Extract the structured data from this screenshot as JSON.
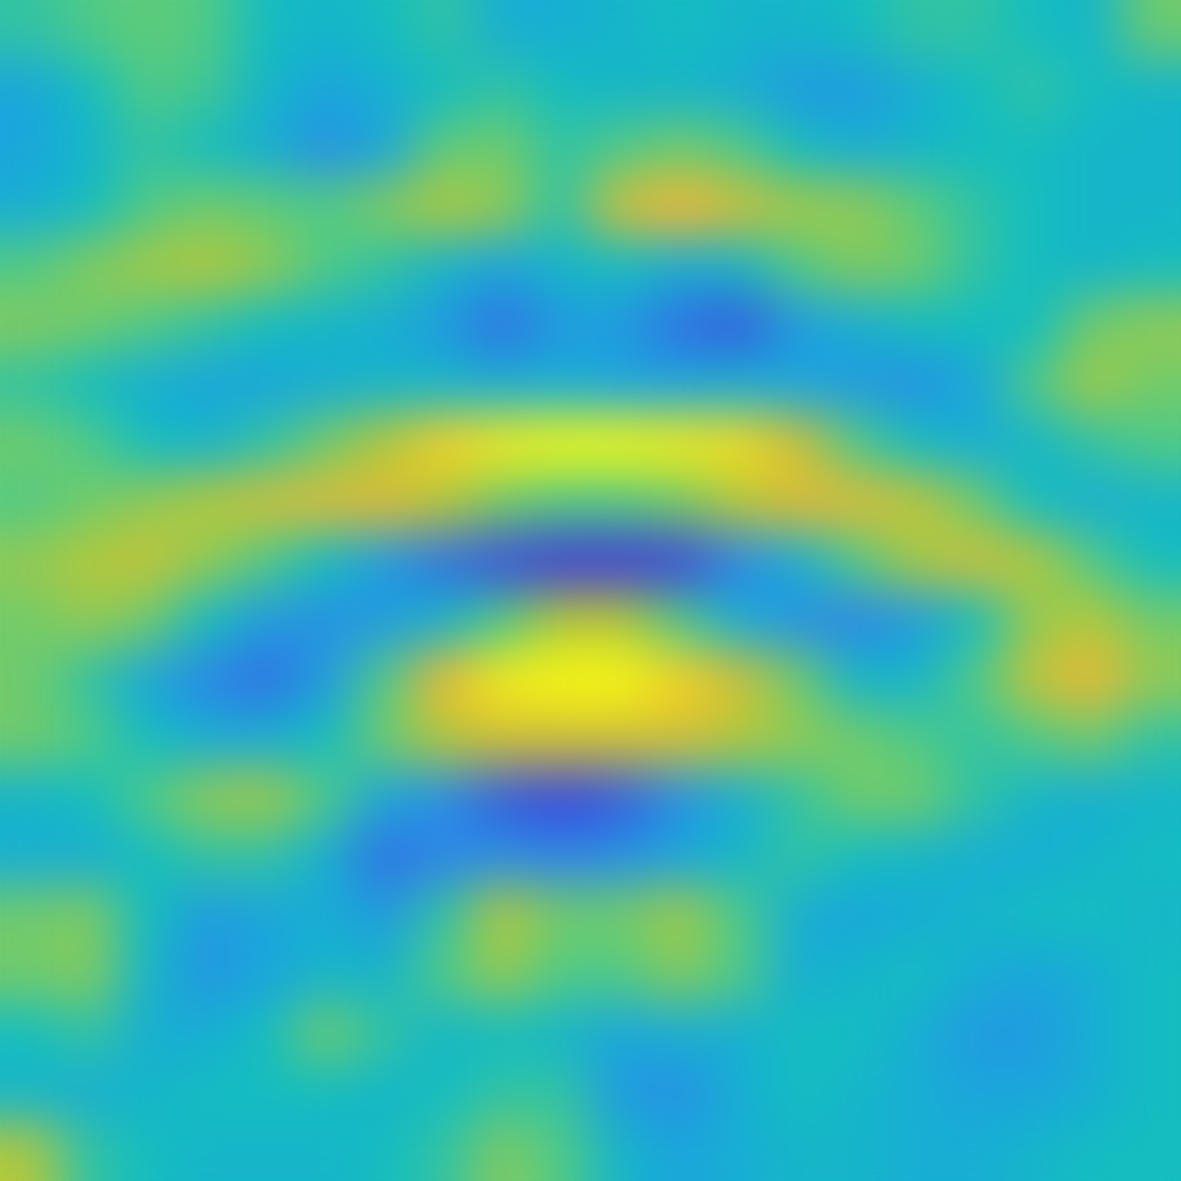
{
  "chart_data": {
    "type": "heatmap",
    "color": "parula",
    "tick_labels": false,
    "clim": [
      -1,
      1
    ],
    "cells": [
      [
        0.1,
        0.2,
        0.25,
        0.2,
        0,
        -0.1,
        0,
        0.1,
        -0.2,
        -0.2,
        -0.1,
        0,
        -0.1,
        -0.1,
        0,
        0.1,
        0.1,
        0,
        -0.1,
        0.3
      ],
      [
        -0.3,
        0,
        0.2,
        0.15,
        -0.1,
        -0.3,
        -0.2,
        0,
        0.1,
        0,
        -0.1,
        -0.1,
        -0.2,
        -0.4,
        -0.4,
        -0.2,
        0,
        0.1,
        0,
        -0.1
      ],
      [
        -0.3,
        -0.1,
        0.1,
        0,
        -0.2,
        -0.5,
        -0.3,
        0.25,
        0.3,
        0.1,
        0.2,
        0.3,
        0.2,
        0,
        -0.2,
        -0.1,
        0,
        0,
        -0.1,
        -0.1
      ],
      [
        -0.2,
        0,
        0.2,
        0.3,
        0.25,
        0.2,
        0.35,
        0.5,
        0.4,
        0.1,
        0.6,
        0.75,
        0.6,
        0.45,
        0.4,
        0.25,
        0.1,
        0,
        -0.1,
        -0.1
      ],
      [
        0.2,
        0.35,
        0.45,
        0.5,
        0.4,
        0.2,
        0.1,
        -0.1,
        -0.3,
        -0.1,
        0,
        -0.2,
        -0.1,
        0.2,
        0.35,
        0.3,
        0.1,
        0,
        -0.1,
        0
      ],
      [
        0.35,
        0.3,
        0.2,
        0.1,
        0,
        -0.1,
        -0.2,
        -0.4,
        -0.7,
        -0.4,
        -0.4,
        -0.7,
        -0.8,
        -0.4,
        -0.2,
        0,
        0,
        0,
        0.3,
        0.4
      ],
      [
        0.1,
        0,
        -0.2,
        -0.3,
        -0.3,
        -0.2,
        -0.1,
        -0.1,
        -0.2,
        -0.2,
        -0.3,
        -0.3,
        -0.2,
        -0.3,
        -0.4,
        -0.5,
        -0.3,
        0.2,
        0.45,
        0.3
      ],
      [
        0.3,
        0.2,
        0,
        -0.1,
        0.1,
        0.3,
        0.5,
        0.85,
        0.95,
        1.0,
        1.0,
        0.95,
        0.9,
        0.6,
        0.2,
        0,
        -0.2,
        -0.1,
        0.1,
        0.2
      ],
      [
        0.2,
        0.3,
        0.4,
        0.5,
        0.6,
        0.65,
        0.65,
        0.5,
        0.3,
        0.2,
        0.2,
        0.3,
        0.5,
        0.65,
        0.65,
        0.55,
        0.3,
        0,
        -0.2,
        -0.1
      ],
      [
        0.4,
        0.5,
        0.55,
        0.4,
        0.2,
        0,
        -0.4,
        -0.7,
        -0.85,
        -0.95,
        -0.95,
        -0.9,
        -0.6,
        -0.2,
        0.2,
        0.45,
        0.6,
        0.5,
        0.2,
        0
      ],
      [
        0.3,
        0.4,
        0.3,
        0,
        -0.4,
        -0.5,
        -0.4,
        -0.1,
        0.2,
        0.5,
        0.5,
        0.2,
        -0.2,
        -0.5,
        -0.6,
        -0.4,
        0,
        0.4,
        0.5,
        0.3
      ],
      [
        0.3,
        0.1,
        -0.3,
        -0.6,
        -0.7,
        -0.4,
        0.2,
        0.7,
        0.95,
        1.0,
        1.0,
        0.85,
        0.6,
        0.3,
        -0.1,
        -0.1,
        0.2,
        0.55,
        0.7,
        0.4
      ],
      [
        0.3,
        0.2,
        0,
        -0.2,
        -0.2,
        0,
        0.3,
        0.5,
        0.6,
        0.6,
        0.6,
        0.6,
        0.5,
        0.4,
        0.3,
        0.2,
        0.1,
        0.2,
        0.3,
        0.1
      ],
      [
        -0.1,
        0,
        0.2,
        0.4,
        0.45,
        0.2,
        -0.3,
        -0.5,
        -0.8,
        -0.9,
        -0.8,
        -0.5,
        -0.2,
        0.1,
        0.3,
        0.3,
        0.1,
        -0.1,
        -0.2,
        -0.1
      ],
      [
        -0.2,
        -0.2,
        0,
        0.1,
        0.1,
        -0.2,
        -0.7,
        -0.6,
        -0.5,
        -0.6,
        -0.5,
        -0.3,
        -0.1,
        0.1,
        0,
        -0.1,
        -0.2,
        -0.2,
        -0.1,
        0
      ],
      [
        0.3,
        0.35,
        0,
        -0.4,
        -0.3,
        -0.2,
        -0.4,
        0.1,
        0.5,
        0.3,
        0.3,
        0.45,
        0.2,
        -0.2,
        -0.3,
        -0.2,
        -0.1,
        0,
        0,
        -0.1
      ],
      [
        0.3,
        0.35,
        -0.1,
        -0.45,
        -0.3,
        -0.1,
        -0.1,
        0.2,
        0.4,
        0.2,
        0.2,
        0.35,
        0.2,
        -0.2,
        -0.1,
        0,
        -0.2,
        -0.3,
        -0.2,
        0
      ],
      [
        0,
        0.1,
        -0.2,
        -0.2,
        0,
        0.3,
        0.1,
        -0.1,
        0,
        -0.1,
        -0.3,
        -0.2,
        -0.2,
        0,
        0,
        -0.2,
        -0.4,
        -0.4,
        -0.2,
        0
      ],
      [
        -0.1,
        -0.2,
        -0.1,
        0,
        0,
        0,
        -0.1,
        0,
        0.1,
        0.1,
        -0.4,
        -0.5,
        -0.2,
        0,
        -0.1,
        -0.2,
        -0.3,
        -0.3,
        -0.2,
        0
      ],
      [
        0.5,
        0.1,
        0,
        -0.1,
        -0.1,
        -0.1,
        0,
        0.1,
        0.35,
        0.2,
        -0.1,
        -0.3,
        -0.2,
        -0.1,
        -0.1,
        -0.2,
        -0.2,
        -0.1,
        0,
        0
      ]
    ]
  }
}
